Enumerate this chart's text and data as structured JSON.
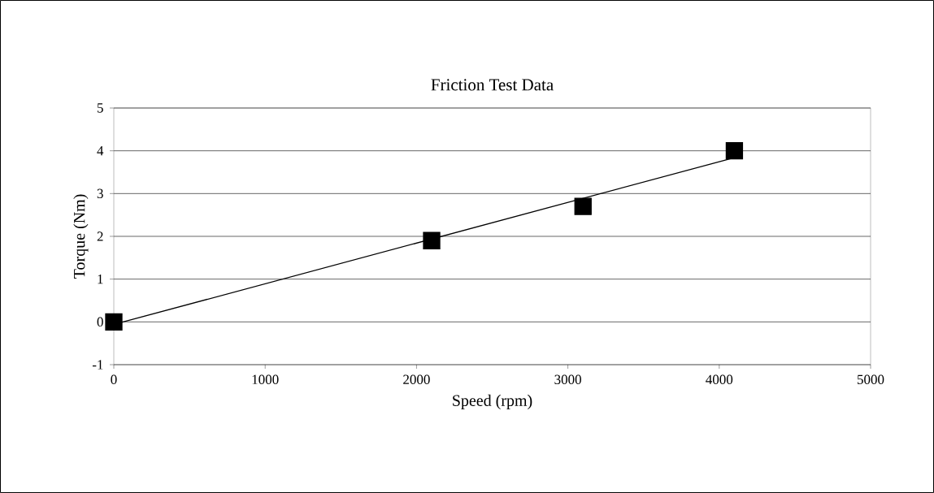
{
  "chart_data": {
    "type": "scatter",
    "title": "Friction Test Data",
    "xlabel": "Speed (rpm)",
    "ylabel": "Torque (Nm)",
    "xlim": [
      0,
      5000
    ],
    "ylim": [
      -1,
      5
    ],
    "xticks": [
      0,
      1000,
      2000,
      3000,
      4000,
      5000
    ],
    "yticks": [
      -1,
      0,
      1,
      2,
      3,
      4,
      5
    ],
    "grid": "y",
    "legend": false,
    "series": [
      {
        "marker": "square",
        "color": "#000000",
        "x": [
          0,
          2100,
          3100,
          4100
        ],
        "values": [
          0,
          1.9,
          2.7,
          4.0
        ]
      },
      {
        "type": "line",
        "marker": "none",
        "line_style": "solid",
        "color": "#000000",
        "x": [
          0,
          4100
        ],
        "values": [
          -0.06,
          3.84
        ]
      }
    ]
  }
}
